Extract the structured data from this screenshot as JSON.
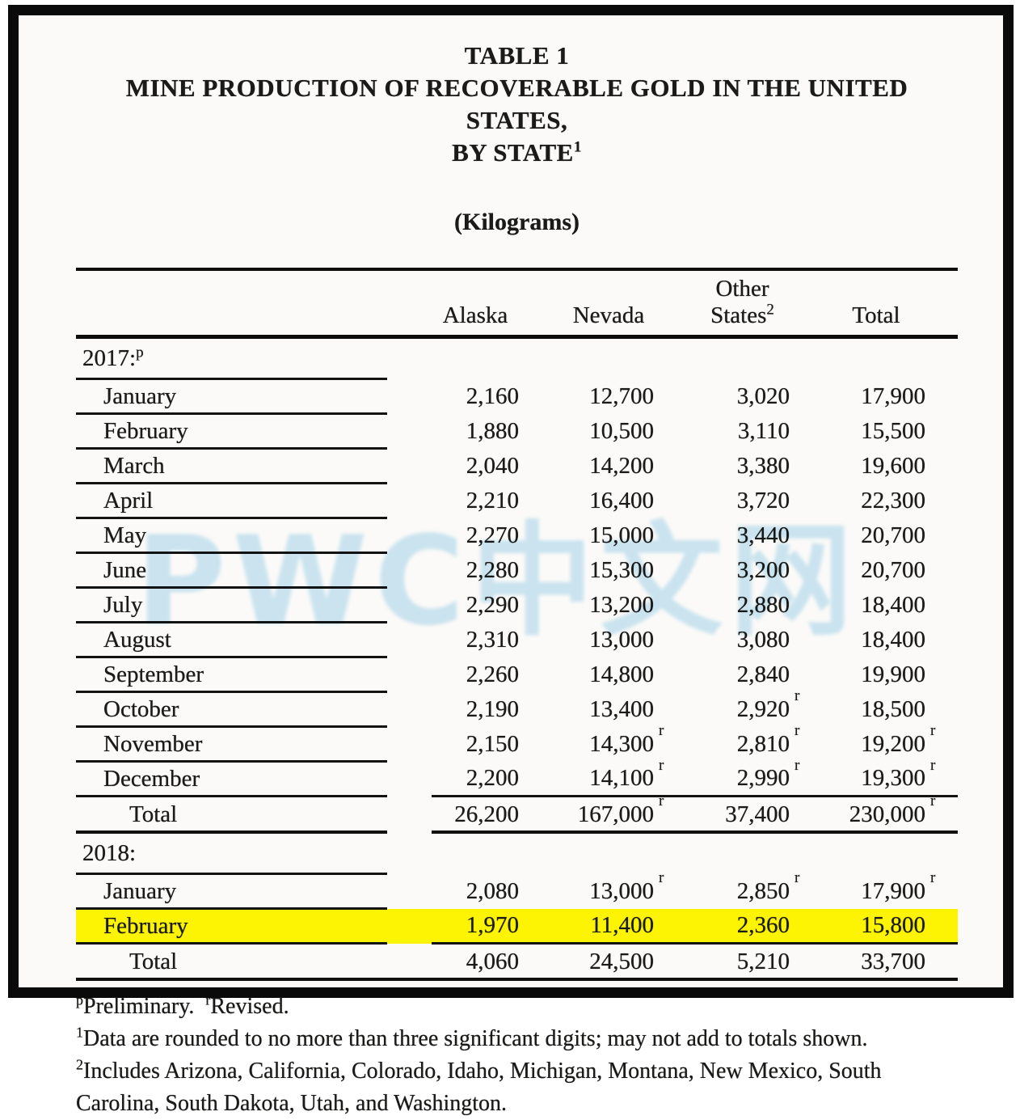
{
  "page": {
    "highlight_color": "#FCF402",
    "watermark_text": "PWC中文网",
    "watermark_color": "#7DC3E6"
  },
  "header": {
    "table_label": "TABLE 1",
    "title": "MINE PRODUCTION OF RECOVERABLE GOLD IN THE UNITED STATES,",
    "subtitle": "BY STATE",
    "subtitle_sup": "1",
    "units": "(Kilograms)"
  },
  "table": {
    "columns": [
      {
        "line1": "",
        "line2": "Alaska",
        "sup": ""
      },
      {
        "line1": "",
        "line2": "Nevada",
        "sup": ""
      },
      {
        "line1": "Other",
        "line2": "States",
        "sup": "2"
      },
      {
        "line1": "",
        "line2": "Total",
        "sup": ""
      }
    ],
    "sections": [
      {
        "label": "2017:",
        "label_sup": "p",
        "rows": [
          {
            "label": "January",
            "values": [
              "2,160",
              "12,700",
              "3,020",
              "17,900"
            ],
            "sups": [
              "",
              "",
              "",
              ""
            ]
          },
          {
            "label": "February",
            "values": [
              "1,880",
              "10,500",
              "3,110",
              "15,500"
            ],
            "sups": [
              "",
              "",
              "",
              ""
            ]
          },
          {
            "label": "March",
            "values": [
              "2,040",
              "14,200",
              "3,380",
              "19,600"
            ],
            "sups": [
              "",
              "",
              "",
              ""
            ]
          },
          {
            "label": "April",
            "values": [
              "2,210",
              "16,400",
              "3,720",
              "22,300"
            ],
            "sups": [
              "",
              "",
              "",
              ""
            ]
          },
          {
            "label": "May",
            "values": [
              "2,270",
              "15,000",
              "3,440",
              "20,700"
            ],
            "sups": [
              "",
              "",
              "",
              ""
            ]
          },
          {
            "label": "June",
            "values": [
              "2,280",
              "15,300",
              "3,200",
              "20,700"
            ],
            "sups": [
              "",
              "",
              "",
              ""
            ]
          },
          {
            "label": "July",
            "values": [
              "2,290",
              "13,200",
              "2,880",
              "18,400"
            ],
            "sups": [
              "",
              "",
              "",
              ""
            ]
          },
          {
            "label": "August",
            "values": [
              "2,310",
              "13,000",
              "3,080",
              "18,400"
            ],
            "sups": [
              "",
              "",
              "",
              ""
            ]
          },
          {
            "label": "September",
            "values": [
              "2,260",
              "14,800",
              "2,840",
              "19,900"
            ],
            "sups": [
              "",
              "",
              "",
              ""
            ]
          },
          {
            "label": "October",
            "values": [
              "2,190",
              "13,400",
              "2,920",
              "18,500"
            ],
            "sups": [
              "",
              "",
              "r",
              ""
            ]
          },
          {
            "label": "November",
            "values": [
              "2,150",
              "14,300",
              "2,810",
              "19,200"
            ],
            "sups": [
              "",
              "r",
              "r",
              "r"
            ]
          },
          {
            "label": "December",
            "values": [
              "2,200",
              "14,100",
              "2,990",
              "19,300"
            ],
            "sups": [
              "",
              "r",
              "r",
              "r"
            ]
          }
        ],
        "total": {
          "label": "Total",
          "values": [
            "26,200",
            "167,000",
            "37,400",
            "230,000"
          ],
          "sups": [
            "",
            "r",
            "",
            "r"
          ]
        }
      },
      {
        "label": "2018:",
        "label_sup": "",
        "rows": [
          {
            "label": "January",
            "values": [
              "2,080",
              "13,000",
              "2,850",
              "17,900"
            ],
            "sups": [
              "",
              "r",
              "r",
              "r"
            ]
          },
          {
            "label": "February",
            "values": [
              "1,970",
              "11,400",
              "2,360",
              "15,800"
            ],
            "sups": [
              "",
              "",
              "",
              ""
            ],
            "highlight": true
          }
        ],
        "total": {
          "label": "Total",
          "values": [
            "4,060",
            "24,500",
            "5,210",
            "33,700"
          ],
          "sups": [
            "",
            "",
            "",
            ""
          ]
        }
      }
    ]
  },
  "footnotes": [
    {
      "segments": [
        {
          "sup": "p",
          "text": "Preliminary. "
        },
        {
          "sup": "r",
          "text": "Revised."
        }
      ]
    },
    {
      "segments": [
        {
          "sup": "1",
          "text": "Data are rounded to no more than three significant digits; may not add to totals shown."
        }
      ]
    },
    {
      "segments": [
        {
          "sup": "2",
          "text": "Includes Arizona, California, Colorado, Idaho, Michigan, Montana, New Mexico, South Carolina, South Dakota, Utah, and Washington."
        }
      ]
    }
  ]
}
